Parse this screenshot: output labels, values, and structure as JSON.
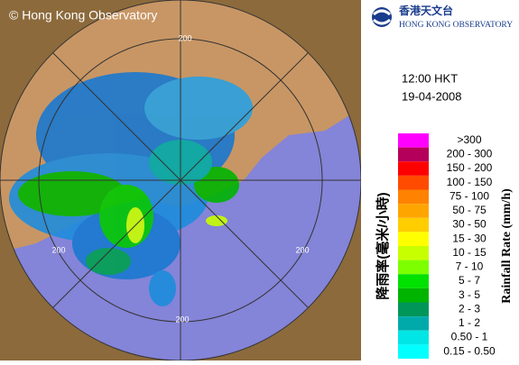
{
  "copyright": "© Hong Kong Observatory",
  "logo": {
    "chinese": "香港天文台",
    "english": "HONG KONG OBSERVATORY"
  },
  "time": "12:00 HKT",
  "date": "19-04-2008",
  "ring_labels": [
    "200",
    "200",
    "200",
    "200"
  ],
  "legend": {
    "title_chinese": "降雨率(毫米/小時)",
    "title_english": "Rainfall Rate (mm/h)",
    "items": [
      {
        "label": ">300",
        "color": "#ff00ff"
      },
      {
        "label": "200 - 300",
        "color": "#b4005a"
      },
      {
        "label": "150 - 200",
        "color": "#ff0000"
      },
      {
        "label": "100 - 150",
        "color": "#ff4b00"
      },
      {
        "label": "75 - 100",
        "color": "#ff8200"
      },
      {
        "label": "50 - 75",
        "color": "#ffa500"
      },
      {
        "label": "30 - 50",
        "color": "#ffcd00"
      },
      {
        "label": "15 - 30",
        "color": "#ffff00"
      },
      {
        "label": "10 - 15",
        "color": "#c8ff00"
      },
      {
        "label": "7 - 10",
        "color": "#7dff00"
      },
      {
        "label": "5 - 7",
        "color": "#00e100"
      },
      {
        "label": "3 - 5",
        "color": "#00b400"
      },
      {
        "label": "2 - 3",
        "color": "#00965a"
      },
      {
        "label": "1 - 2",
        "color": "#00aaaa"
      },
      {
        "label": "0.50 - 1",
        "color": "#00e6e6"
      },
      {
        "label": "0.15 - 0.50",
        "color": "#00ffff"
      }
    ]
  }
}
